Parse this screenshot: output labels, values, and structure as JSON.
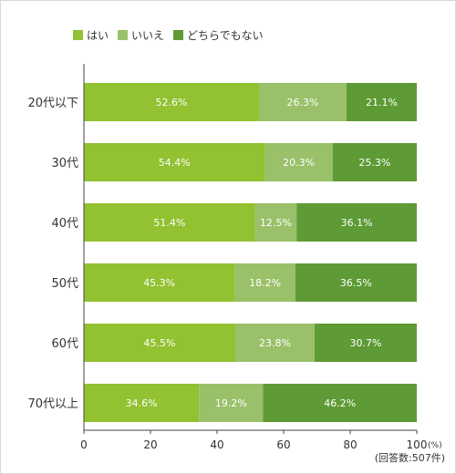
{
  "legend": [
    {
      "label": "はい",
      "color": "#92c131"
    },
    {
      "label": "いいえ",
      "color": "#9ac069"
    },
    {
      "label": "どちらでもない",
      "color": "#5e9a35"
    }
  ],
  "note": "(回答数:507件)",
  "chart_data": {
    "type": "bar",
    "orientation": "horizontal",
    "stacked": true,
    "categories": [
      "20代以下",
      "30代",
      "40代",
      "50代",
      "60代",
      "70代以上"
    ],
    "series": [
      {
        "name": "はい",
        "values": [
          52.6,
          54.4,
          51.4,
          45.3,
          45.5,
          34.6
        ],
        "labels": [
          "52.6%",
          "54.4%",
          "51.4%",
          "45.3%",
          "45.5%",
          "34.6%"
        ]
      },
      {
        "name": "いいえ",
        "values": [
          26.3,
          20.3,
          12.5,
          18.2,
          23.8,
          19.2
        ],
        "labels": [
          "26.3%",
          "20.3%",
          "12.5%",
          "18.2%",
          "23.8%",
          "19.2%"
        ]
      },
      {
        "name": "どちらでもない",
        "values": [
          21.1,
          25.3,
          36.1,
          36.5,
          30.7,
          46.2
        ],
        "labels": [
          "21.1%",
          "25.3%",
          "36.1%",
          "36.5%",
          "30.7%",
          "46.2%"
        ]
      }
    ],
    "xlim": [
      0,
      100
    ],
    "xticks": [
      "0",
      "20",
      "40",
      "60",
      "80",
      "100"
    ],
    "xunit": "(%)",
    "grid": false,
    "legend_position": "top-left"
  }
}
